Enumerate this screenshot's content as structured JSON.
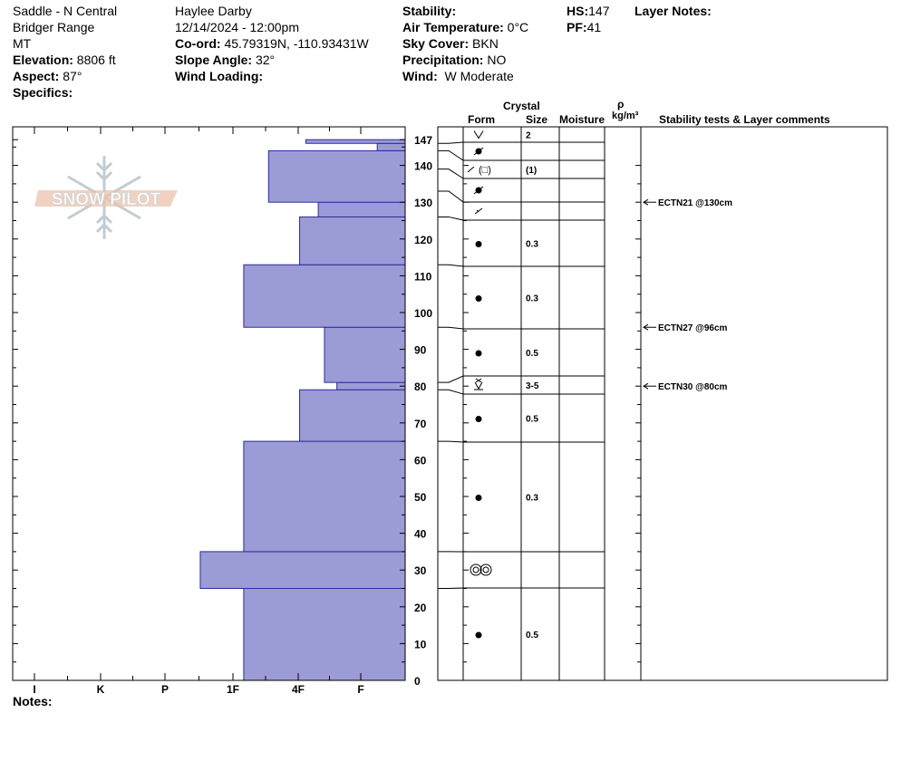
{
  "header": {
    "location": "Saddle - N Central",
    "range": "Bridger Range",
    "state": "MT",
    "elevation_label": "Elevation:",
    "elevation_value": "8806 ft",
    "aspect_label": "Aspect:",
    "aspect_value": "87°",
    "specifics_label": "Specifics:",
    "observer": "Haylee Darby",
    "datetime": "12/14/2024 - 12:00pm",
    "coord_label": "Co-ord:",
    "coord_value": "45.79319N, -110.93431W",
    "slope_label": "Slope Angle:",
    "slope_value": "32°",
    "wind_loading_label": "Wind Loading:",
    "stability_label": "Stability:",
    "air_temp_label": "Air Temperature:",
    "air_temp_value": "0°C",
    "sky_label": "Sky Cover:",
    "sky_value": "BKN",
    "precip_label": "Precipitation:",
    "precip_value": "NO",
    "wind_label": "Wind:",
    "wind_value": "W Moderate",
    "hs_label": "HS:",
    "hs_value": "147",
    "pf_label": "PF:",
    "pf_value": "41",
    "layer_notes_label": "Layer Notes:"
  },
  "columns": {
    "crystal": "Crystal",
    "form": "Form",
    "size": "Size",
    "moisture": "Moisture",
    "rho": "ρ",
    "density_unit": "kg/m³",
    "stability": "Stability tests & Layer comments"
  },
  "notes_label": "Notes:",
  "watermark": "SNOW PILOT",
  "chart_data": {
    "type": "bar",
    "orientation": "horizontal",
    "x_axis_categories": [
      "I",
      "K",
      "P",
      "1F",
      "4F",
      "F"
    ],
    "ylim": [
      0,
      147
    ],
    "yticks": [
      0,
      10,
      20,
      30,
      40,
      50,
      60,
      70,
      80,
      90,
      100,
      110,
      120,
      130,
      140,
      147
    ],
    "hardness_layers": [
      {
        "bottom": 0,
        "top": 25,
        "hardness": 2.6
      },
      {
        "bottom": 25,
        "top": 35,
        "hardness": 3.3
      },
      {
        "bottom": 35,
        "top": 65,
        "hardness": 2.6
      },
      {
        "bottom": 65,
        "top": 79,
        "hardness": 1.7
      },
      {
        "bottom": 79,
        "top": 81,
        "hardness": 1.1
      },
      {
        "bottom": 81,
        "top": 96,
        "hardness": 1.3
      },
      {
        "bottom": 96,
        "top": 113,
        "hardness": 2.6
      },
      {
        "bottom": 113,
        "top": 126,
        "hardness": 1.7
      },
      {
        "bottom": 126,
        "top": 130,
        "hardness": 1.4
      },
      {
        "bottom": 130,
        "top": 144,
        "hardness": 2.2
      },
      {
        "bottom": 144,
        "top": 146,
        "hardness": 0.45
      },
      {
        "bottom": 146,
        "top": 147,
        "hardness": 1.6
      }
    ],
    "crystal_layers": [
      {
        "top": 147,
        "bottom": 146,
        "form": "surface-hoar",
        "size": "2"
      },
      {
        "top": 146,
        "bottom": 144,
        "form": "decomposed",
        "size": ""
      },
      {
        "top": 144,
        "bottom": 139,
        "form": "faceting-mixed",
        "size": "(1)"
      },
      {
        "top": 139,
        "bottom": 133,
        "form": "decomposed",
        "size": ""
      },
      {
        "top": 133,
        "bottom": 126,
        "form": "faceting",
        "size": ""
      },
      {
        "top": 126,
        "bottom": 113,
        "form": "rounded",
        "size": "0.3"
      },
      {
        "top": 113,
        "bottom": 96,
        "form": "rounded",
        "size": "0.3"
      },
      {
        "top": 96,
        "bottom": 81,
        "form": "rounded",
        "size": "0.5"
      },
      {
        "top": 81,
        "bottom": 79,
        "form": "surface-hoar-buried",
        "size": "3-5"
      },
      {
        "top": 79,
        "bottom": 65,
        "form": "rounded",
        "size": "0.5"
      },
      {
        "top": 65,
        "bottom": 35,
        "form": "rounded",
        "size": "0.3"
      },
      {
        "top": 35,
        "bottom": 25,
        "form": "melt-forms",
        "size": ""
      },
      {
        "top": 25,
        "bottom": 0,
        "form": "rounded",
        "size": "0.5"
      }
    ],
    "stability_tests": [
      {
        "depth": 130,
        "label": "ECTN21 @130cm"
      },
      {
        "depth": 96,
        "label": "ECTN27 @96cm"
      },
      {
        "depth": 80,
        "label": "ECTN30 @80cm"
      }
    ]
  }
}
